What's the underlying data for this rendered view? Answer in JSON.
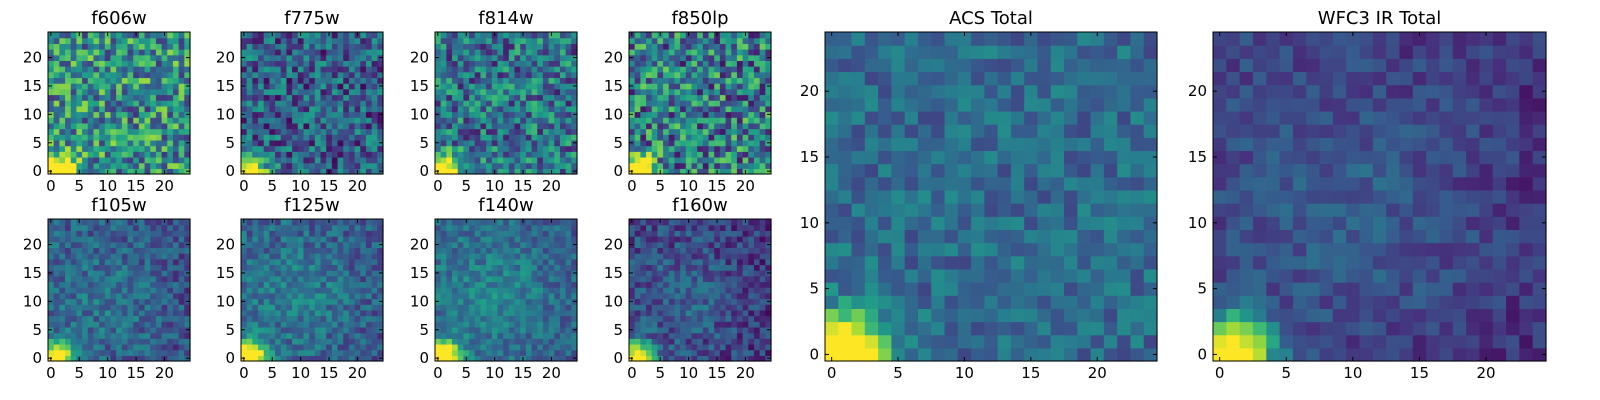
{
  "chart_data": {
    "type": "heatmap",
    "colormap": "viridis",
    "colormap_stops": [
      "#440154",
      "#46327e",
      "#365c8d",
      "#277f8e",
      "#1fa187",
      "#4ac16d",
      "#a0da39",
      "#fde725"
    ],
    "grid_size": [
      25,
      25
    ],
    "panels": [
      {
        "id": "f606w",
        "title": "f606w",
        "xticks": [
          0,
          5,
          10,
          15,
          20
        ],
        "yticks": [
          0,
          5,
          10,
          15,
          20
        ],
        "xlim": [
          0,
          24
        ],
        "ylim": [
          0,
          24
        ],
        "mean_level": 0.5,
        "noise": 0.34,
        "pattern": "uniform"
      },
      {
        "id": "f775w",
        "title": "f775w",
        "xticks": [
          0,
          5,
          10,
          15,
          20
        ],
        "yticks": [
          0,
          5,
          10,
          15,
          20
        ],
        "xlim": [
          0,
          24
        ],
        "ylim": [
          0,
          24
        ],
        "mean_level": 0.3,
        "noise": 0.28,
        "pattern": "uniform"
      },
      {
        "id": "f814w",
        "title": "f814w",
        "xticks": [
          0,
          5,
          10,
          15,
          20
        ],
        "yticks": [
          0,
          5,
          10,
          15,
          20
        ],
        "xlim": [
          0,
          24
        ],
        "ylim": [
          0,
          24
        ],
        "mean_level": 0.38,
        "noise": 0.3,
        "pattern": "uniform"
      },
      {
        "id": "f850lp",
        "title": "f850lp",
        "xticks": [
          0,
          5,
          10,
          15,
          20
        ],
        "yticks": [
          0,
          5,
          10,
          15,
          20
        ],
        "xlim": [
          0,
          24
        ],
        "ylim": [
          0,
          24
        ],
        "mean_level": 0.42,
        "noise": 0.36,
        "pattern": "uniform"
      },
      {
        "id": "f105w",
        "title": "f105w",
        "xticks": [
          0,
          5,
          10,
          15,
          20
        ],
        "yticks": [
          0,
          5,
          10,
          15,
          20
        ],
        "xlim": [
          0,
          24
        ],
        "ylim": [
          0,
          24
        ],
        "mean_level": 0.3,
        "noise": 0.16,
        "pattern": "center"
      },
      {
        "id": "f125w",
        "title": "f125w",
        "xticks": [
          0,
          5,
          10,
          15,
          20
        ],
        "yticks": [
          0,
          5,
          10,
          15,
          20
        ],
        "xlim": [
          0,
          24
        ],
        "ylim": [
          0,
          24
        ],
        "mean_level": 0.33,
        "noise": 0.16,
        "pattern": "center"
      },
      {
        "id": "f140w",
        "title": "f140w",
        "xticks": [
          0,
          5,
          10,
          15,
          20
        ],
        "yticks": [
          0,
          5,
          10,
          15,
          20
        ],
        "xlim": [
          0,
          24
        ],
        "ylim": [
          0,
          24
        ],
        "mean_level": 0.36,
        "noise": 0.14,
        "pattern": "center"
      },
      {
        "id": "f160w",
        "title": "f160w",
        "xticks": [
          0,
          5,
          10,
          15,
          20
        ],
        "yticks": [
          0,
          5,
          10,
          15,
          20
        ],
        "xlim": [
          0,
          24
        ],
        "ylim": [
          0,
          24
        ],
        "mean_level": 0.22,
        "noise": 0.16,
        "pattern": "center"
      },
      {
        "id": "acs-total",
        "title": "ACS Total",
        "xticks": [
          0,
          5,
          10,
          15,
          20
        ],
        "yticks": [
          0,
          5,
          10,
          15,
          20
        ],
        "xlim": [
          0,
          24
        ],
        "ylim": [
          0,
          24
        ],
        "mean_level": 0.35,
        "noise": 0.14,
        "pattern": "uniform"
      },
      {
        "id": "wfc3-ir-total",
        "title": "WFC3 IR Total",
        "xticks": [
          0,
          5,
          10,
          15,
          20
        ],
        "yticks": [
          0,
          5,
          10,
          15,
          20
        ],
        "xlim": [
          0,
          24
        ],
        "ylim": [
          0,
          24
        ],
        "mean_level": 0.2,
        "noise": 0.1,
        "pattern": "center"
      }
    ],
    "bright_source": {
      "x": 1,
      "y": 0,
      "peak": 1.0,
      "radius": 4.5
    },
    "grid": false,
    "legend": "none"
  }
}
